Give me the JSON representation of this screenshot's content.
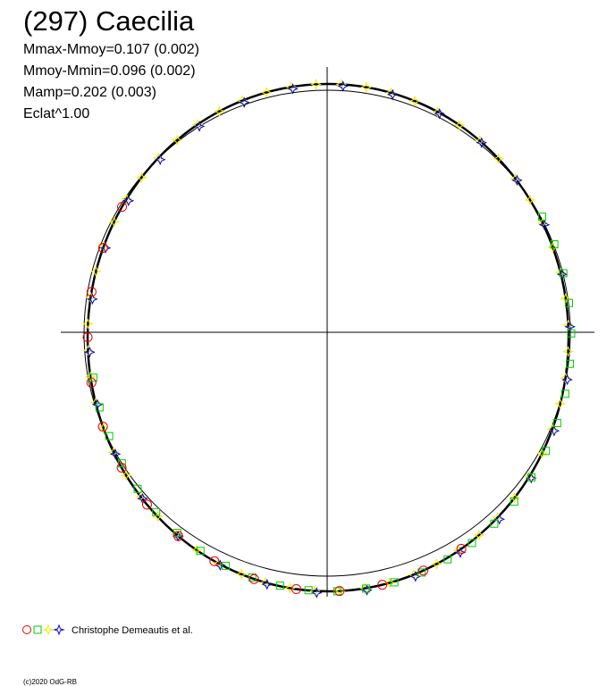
{
  "header": {
    "title": "(297) Caecilia",
    "lines": [
      "Mmax-Mmoy=0.107 (0.002)",
      "Mmoy-Mmin=0.096 (0.002)",
      "Mamp=0.202 (0.003)",
      "Eclat^1.00"
    ]
  },
  "legend": {
    "label": "Christophe Demeautis et al."
  },
  "footer": "(c)2020 OdG-RB"
}
